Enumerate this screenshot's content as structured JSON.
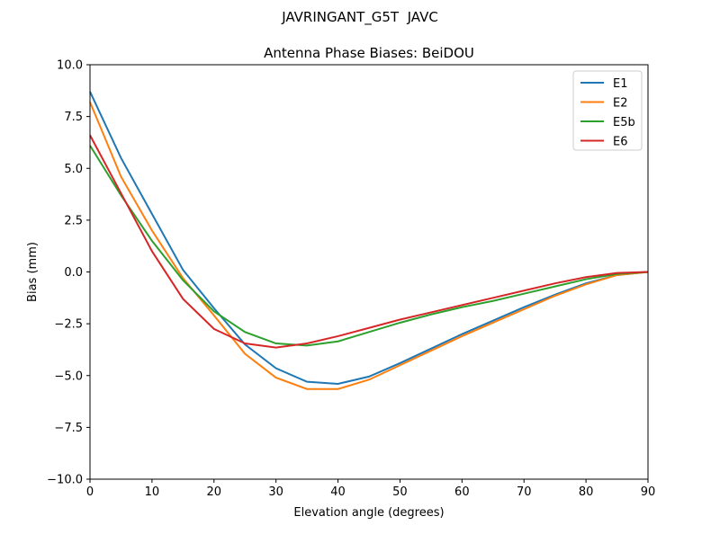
{
  "chart_data": {
    "type": "line",
    "suptitle": "JAVRINGANT_G5T  JAVC",
    "title": "Antenna Phase Biases: BeiDOU",
    "xlabel": "Elevation angle (degrees)",
    "ylabel": "Bias (mm)",
    "xlim": [
      0,
      90
    ],
    "ylim": [
      -10,
      10
    ],
    "xticks": [
      0,
      10,
      20,
      30,
      40,
      50,
      60,
      70,
      80,
      90
    ],
    "yticks": [
      -10.0,
      -7.5,
      -5.0,
      -2.5,
      0.0,
      2.5,
      5.0,
      7.5,
      10.0
    ],
    "ytick_labels": [
      "−10.0",
      "−7.5",
      "−5.0",
      "−2.5",
      "0.0",
      "2.5",
      "5.0",
      "7.5",
      "10.0"
    ],
    "grid": false,
    "legend_position": "top-right",
    "x": [
      0,
      5,
      10,
      15,
      20,
      25,
      30,
      35,
      40,
      45,
      50,
      55,
      60,
      65,
      70,
      75,
      80,
      85,
      90
    ],
    "series": [
      {
        "name": "E1",
        "color": "#1f77b4",
        "values": [
          8.7,
          5.5,
          2.8,
          0.1,
          -1.75,
          -3.5,
          -4.65,
          -5.3,
          -5.4,
          -5.05,
          -4.4,
          -3.7,
          -3.0,
          -2.35,
          -1.7,
          -1.1,
          -0.55,
          -0.15,
          0.0
        ]
      },
      {
        "name": "E2",
        "color": "#ff7f0e",
        "values": [
          8.2,
          4.6,
          2.0,
          -0.3,
          -2.1,
          -3.95,
          -5.1,
          -5.65,
          -5.65,
          -5.2,
          -4.5,
          -3.8,
          -3.1,
          -2.45,
          -1.8,
          -1.15,
          -0.6,
          -0.15,
          0.0
        ]
      },
      {
        "name": "E5b",
        "color": "#2ca02c",
        "values": [
          6.1,
          3.7,
          1.5,
          -0.4,
          -1.9,
          -2.9,
          -3.45,
          -3.55,
          -3.35,
          -2.9,
          -2.45,
          -2.05,
          -1.7,
          -1.4,
          -1.05,
          -0.7,
          -0.35,
          -0.1,
          0.0
        ]
      },
      {
        "name": "E6",
        "color": "#d62728",
        "values": [
          6.6,
          3.8,
          1.0,
          -1.3,
          -2.75,
          -3.45,
          -3.65,
          -3.45,
          -3.1,
          -2.7,
          -2.3,
          -1.95,
          -1.6,
          -1.25,
          -0.9,
          -0.55,
          -0.25,
          -0.05,
          0.0
        ]
      }
    ]
  }
}
